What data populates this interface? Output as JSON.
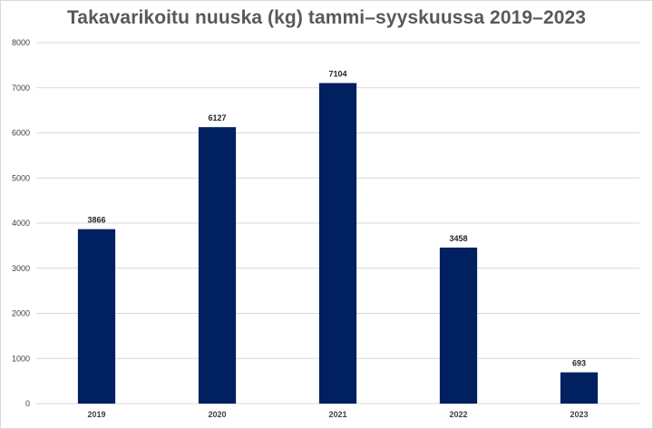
{
  "chart_data": {
    "type": "bar",
    "title": "Takavarikoitu nuuska (kg) tammi–syyskuussa 2019–2023",
    "categories": [
      "2019",
      "2020",
      "2021",
      "2022",
      "2023"
    ],
    "values": [
      3866,
      6127,
      7104,
      3458,
      693
    ],
    "ylim": [
      0,
      8000
    ],
    "yticks": [
      0,
      1000,
      2000,
      3000,
      4000,
      5000,
      6000,
      7000,
      8000
    ],
    "grid": true,
    "data_labels": true,
    "bar_color": "#002060",
    "gridline_color": "#d9d9d9"
  }
}
